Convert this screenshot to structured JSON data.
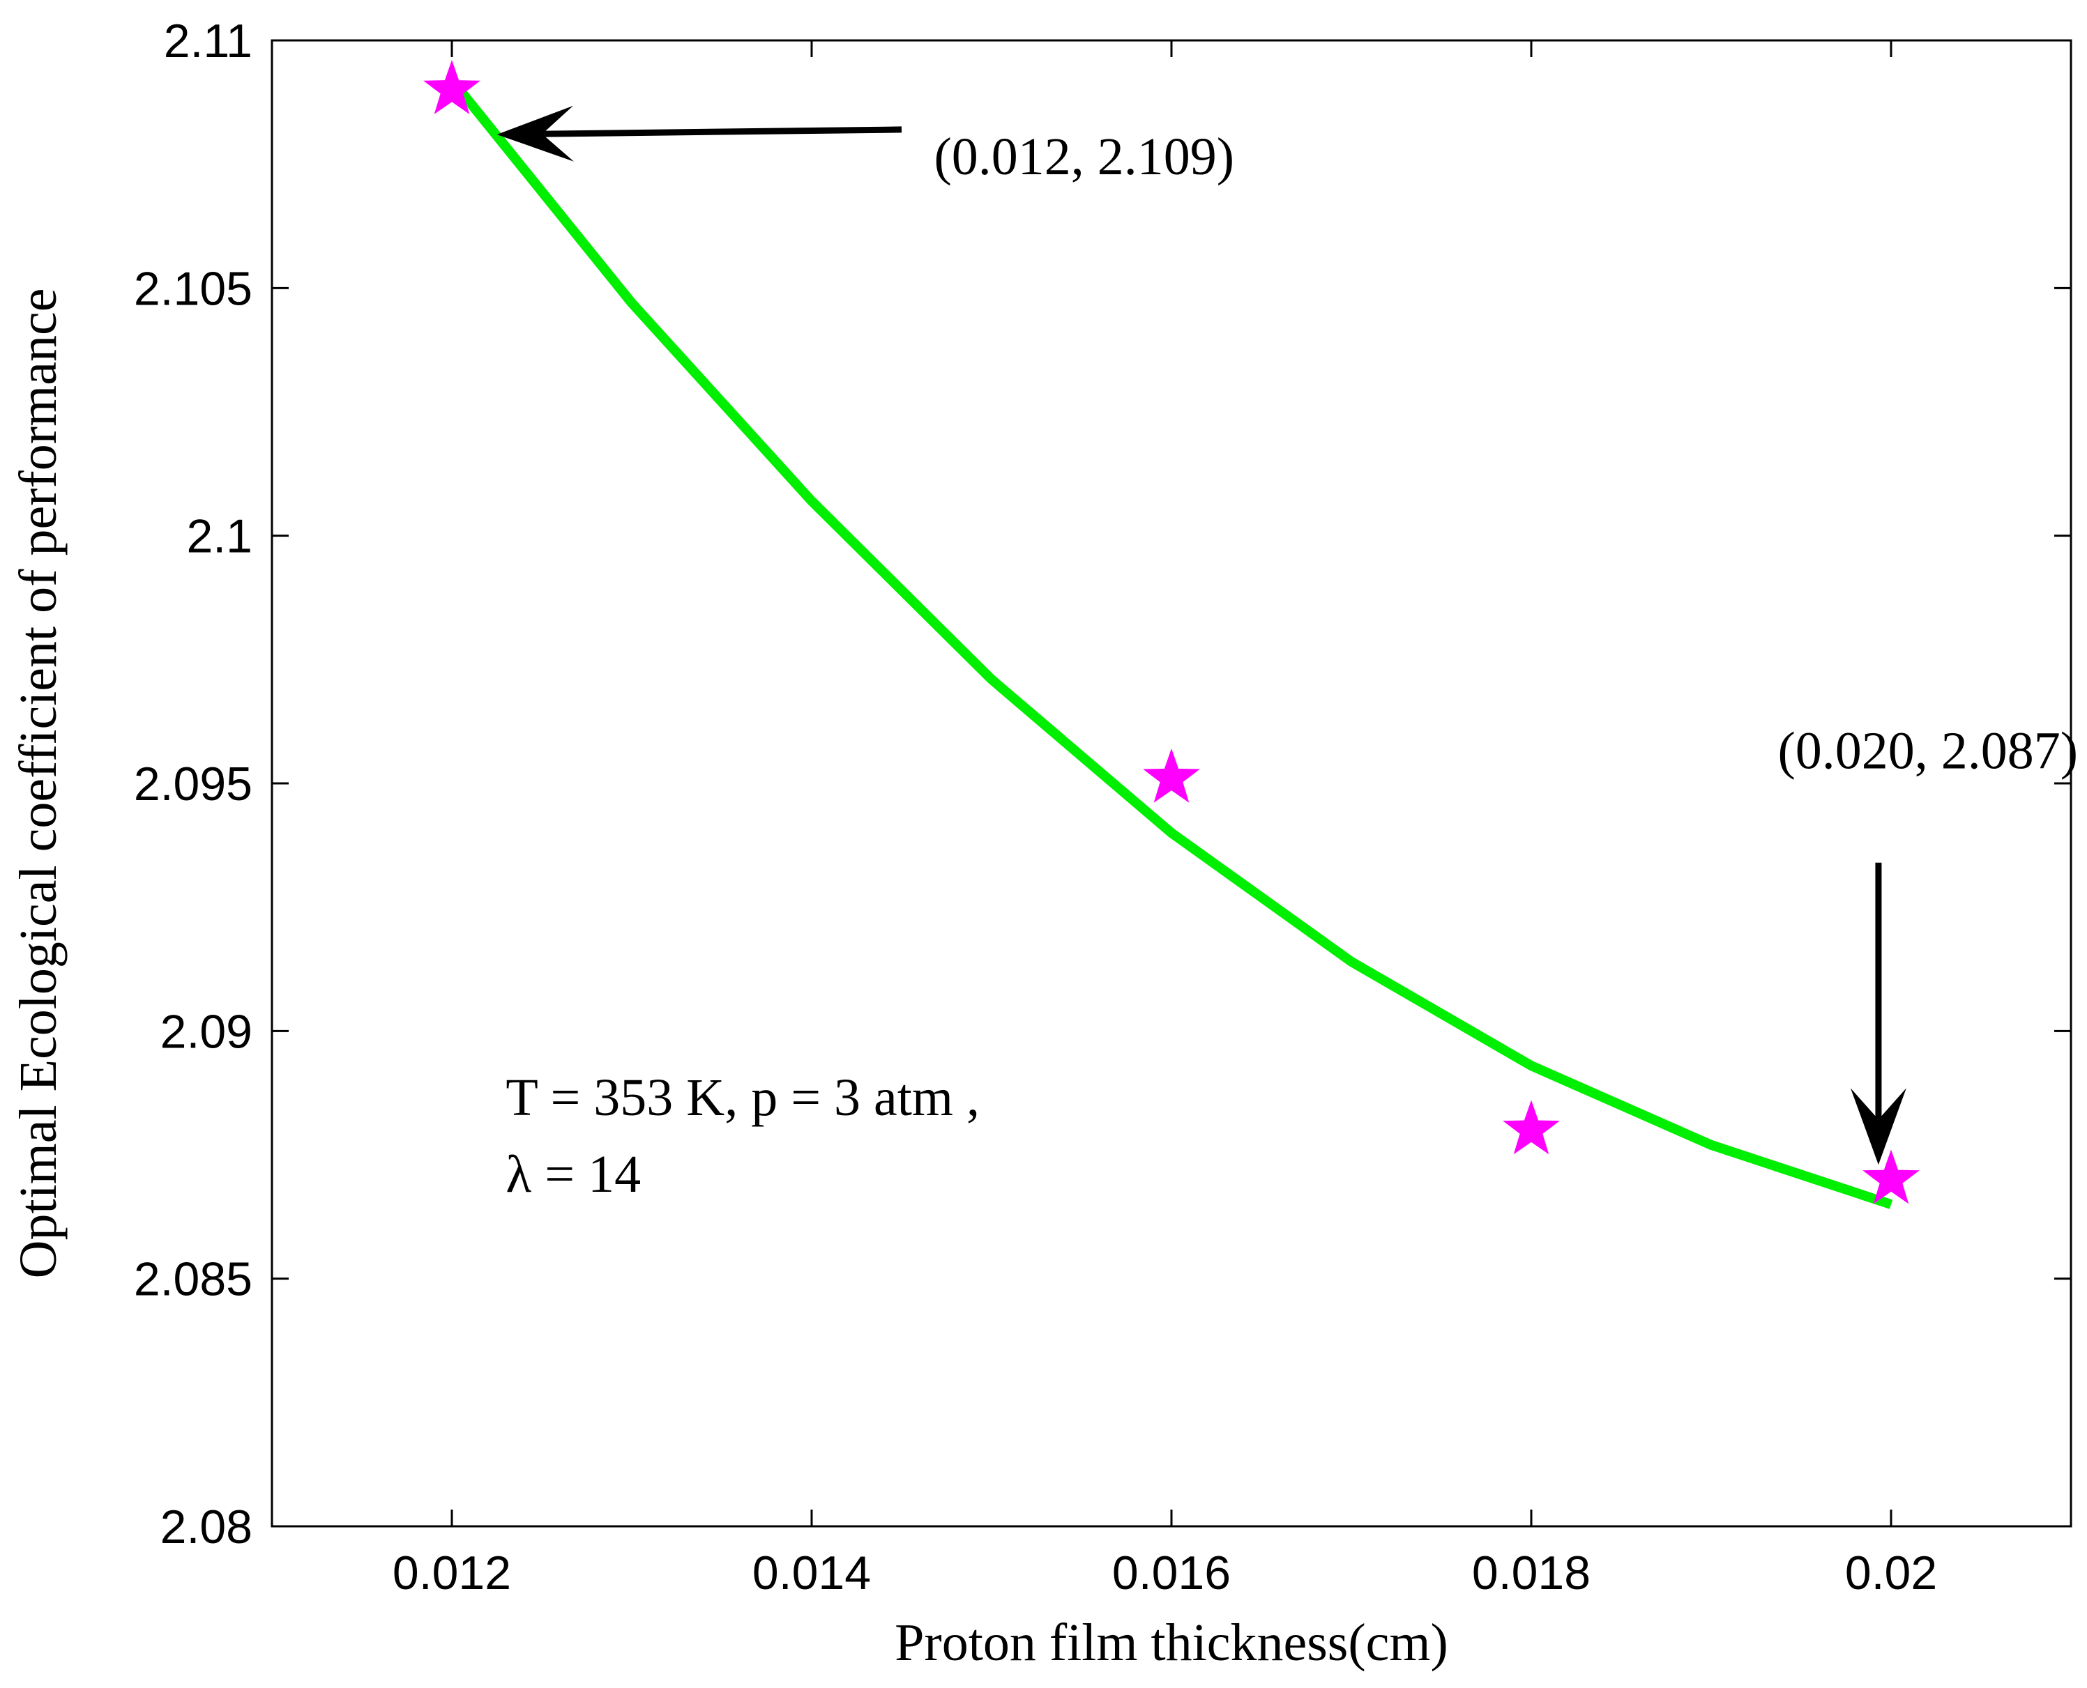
{
  "chart_data": {
    "type": "line",
    "xlabel": "Proton film thickness(cm)",
    "ylabel": "Optimal Ecological coefficient of performance",
    "xlim": [
      0.011,
      0.021
    ],
    "ylim": [
      2.08,
      2.11
    ],
    "x_ticks": [
      0.012,
      0.014,
      0.016,
      0.018,
      0.02
    ],
    "x_tick_labels": [
      "0.012",
      "0.014",
      "0.016",
      "0.018",
      "0.02"
    ],
    "y_ticks": [
      2.08,
      2.085,
      2.09,
      2.095,
      2.1,
      2.105,
      2.11
    ],
    "y_tick_labels": [
      "2.08",
      "2.085",
      "2.09",
      "2.095",
      "2.1",
      "2.105",
      "2.11"
    ],
    "grid": false,
    "series": [
      {
        "name": "curve",
        "style": "line",
        "color": "#00ee00",
        "x": [
          0.012,
          0.013,
          0.014,
          0.015,
          0.016,
          0.017,
          0.018,
          0.019,
          0.02
        ],
        "y": [
          2.1092,
          2.1047,
          2.1007,
          2.0971,
          2.094,
          2.0914,
          2.0893,
          2.0877,
          2.0865
        ]
      },
      {
        "name": "markers",
        "style": "star",
        "color": "#ff00ff",
        "x": [
          0.012,
          0.016,
          0.018,
          0.02
        ],
        "y": [
          2.109,
          2.0951,
          2.088,
          2.087
        ]
      }
    ],
    "annotations": [
      {
        "text": "(0.012, 2.109)",
        "text_x": 0.01468,
        "text_y": 2.1073,
        "arrow_from": [
          0.0145,
          2.1082
        ],
        "arrow_to": [
          0.01225,
          2.1081
        ]
      },
      {
        "text": "(0.020, 2.087)",
        "text_x": 0.01937,
        "text_y": 2.0953,
        "arrow_from": [
          0.01993,
          2.0934
        ],
        "arrow_to": [
          0.01993,
          2.0873
        ]
      }
    ],
    "conditions": {
      "line1": "T = 353 K, p = 3 atm ,",
      "line2": "λ = 14",
      "text_x": 0.0123,
      "text_y": 2.0883
    }
  }
}
